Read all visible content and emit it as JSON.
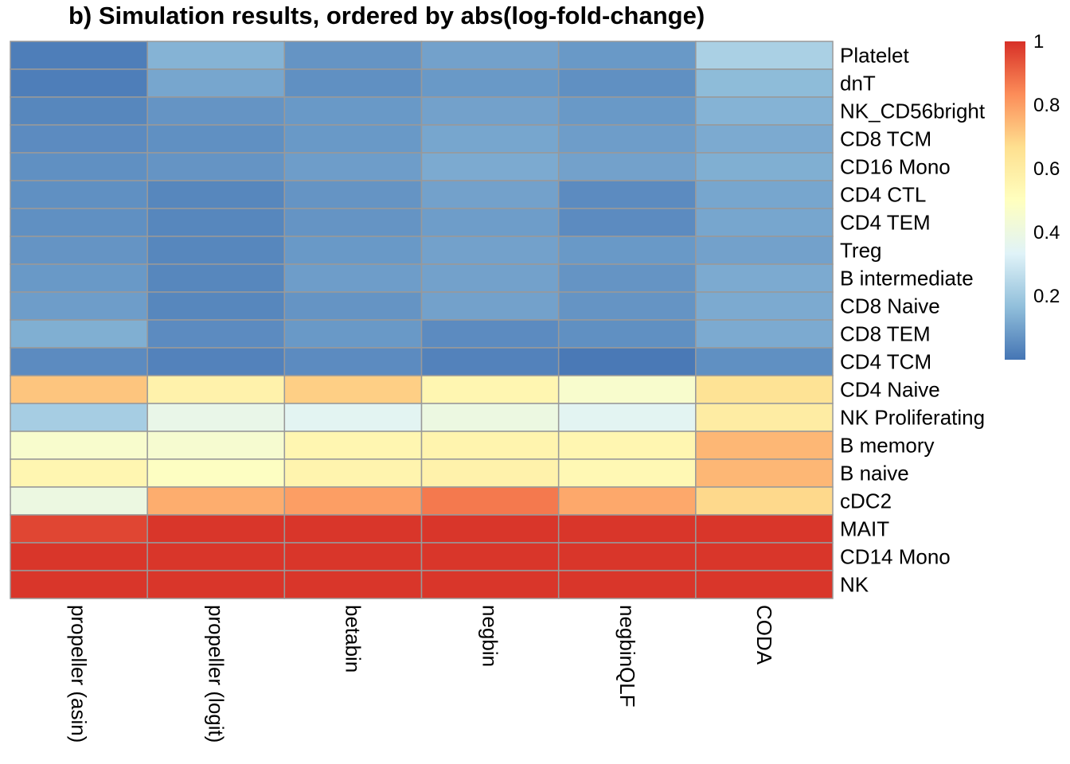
{
  "chart_data": {
    "type": "heatmap",
    "title": "b) Simulation results, ordered by abs(log-fold-change)",
    "columns": [
      "propeller (asin)",
      "propeller (logit)",
      "betabin",
      "negbin",
      "negbinQLF",
      "CODA"
    ],
    "rows": [
      "Platelet",
      "dnT",
      "NK_CD56bright",
      "CD8 TCM",
      "CD16 Mono",
      "CD4 CTL",
      "CD4 TEM",
      "Treg",
      "B intermediate",
      "CD8 Naive",
      "CD8 TEM",
      "CD4 TCM",
      "CD4 Naive",
      "NK Proliferating",
      "B memory",
      "B naive",
      "cDC2",
      "MAIT",
      "CD14 Mono",
      "NK"
    ],
    "values": [
      [
        0.02,
        0.14,
        0.07,
        0.1,
        0.08,
        0.22
      ],
      [
        0.02,
        0.11,
        0.06,
        0.08,
        0.06,
        0.16
      ],
      [
        0.04,
        0.07,
        0.08,
        0.1,
        0.08,
        0.14
      ],
      [
        0.05,
        0.06,
        0.08,
        0.11,
        0.09,
        0.12
      ],
      [
        0.06,
        0.07,
        0.09,
        0.12,
        0.1,
        0.13
      ],
      [
        0.06,
        0.04,
        0.07,
        0.1,
        0.05,
        0.11
      ],
      [
        0.06,
        0.04,
        0.07,
        0.09,
        0.05,
        0.11
      ],
      [
        0.07,
        0.04,
        0.08,
        0.1,
        0.08,
        0.1
      ],
      [
        0.08,
        0.04,
        0.09,
        0.1,
        0.07,
        0.12
      ],
      [
        0.09,
        0.04,
        0.07,
        0.1,
        0.07,
        0.12
      ],
      [
        0.13,
        0.05,
        0.08,
        0.05,
        0.06,
        0.12
      ],
      [
        0.05,
        0.03,
        0.05,
        0.03,
        0.01,
        0.06
      ],
      [
        0.72,
        0.57,
        0.7,
        0.55,
        0.46,
        0.65
      ],
      [
        0.21,
        0.38,
        0.35,
        0.4,
        0.35,
        0.6
      ],
      [
        0.46,
        0.45,
        0.55,
        0.56,
        0.55,
        0.75
      ],
      [
        0.55,
        0.49,
        0.56,
        0.57,
        0.54,
        0.75
      ],
      [
        0.4,
        0.77,
        0.8,
        0.87,
        0.78,
        0.68
      ],
      [
        0.96,
        0.99,
        0.99,
        0.99,
        0.99,
        0.99
      ],
      [
        0.99,
        0.99,
        0.99,
        0.99,
        0.99,
        0.99
      ],
      [
        0.99,
        0.99,
        0.99,
        0.99,
        0.99,
        0.99
      ]
    ],
    "legend": {
      "ticks": [
        {
          "label": "1",
          "value": 1.0
        },
        {
          "label": "0.8",
          "value": 0.8
        },
        {
          "label": "0.6",
          "value": 0.6
        },
        {
          "label": "0.4",
          "value": 0.4
        },
        {
          "label": "0.2",
          "value": 0.2
        }
      ],
      "range": [
        0.0,
        1.0
      ],
      "placement": "right"
    },
    "color_scale": [
      "#4575B4",
      "#91BFDB",
      "#E0F3F8",
      "#FFFFBF",
      "#FEE090",
      "#FC8D59",
      "#D73027"
    ],
    "grid_color": "#999999"
  }
}
